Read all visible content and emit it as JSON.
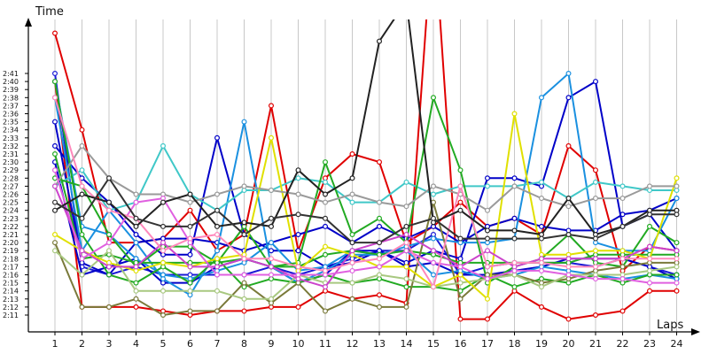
{
  "chart_data": {
    "type": "line",
    "xlabel": "Laps",
    "ylabel": "Time",
    "x_categories": [
      1,
      2,
      3,
      4,
      5,
      6,
      7,
      8,
      9,
      10,
      11,
      12,
      13,
      14,
      15,
      16,
      17,
      18,
      19,
      20,
      21,
      22,
      23,
      24
    ],
    "y_ticks": [
      "2:11",
      "2:12",
      "2:13",
      "2:14",
      "2:15",
      "2:16",
      "2:17",
      "2:18",
      "2:19",
      "2:20",
      "2:21",
      "2:22",
      "2:23",
      "2:24",
      "2:25",
      "2:26",
      "2:27",
      "2:28",
      "2:29",
      "2:30",
      "2:31",
      "2:32",
      "2:33",
      "2:34",
      "2:35",
      "2:36",
      "2:37",
      "2:38",
      "2:39",
      "2:40",
      "2:41"
    ],
    "y_unit": "seconds",
    "ylim_seconds": [
      130,
      162
    ],
    "grid_vertical": true,
    "grid_horizontal": false,
    "series": [
      {
        "color": "#e00000",
        "values": [
          160,
          132,
          132,
          132,
          131.5,
          131,
          131.5,
          131.5,
          132,
          132,
          134,
          133,
          133.5,
          132.5,
          180,
          130.5,
          130.5,
          134,
          132,
          130.5,
          131,
          131.5,
          134,
          134
        ]
      },
      {
        "color": "#e00000",
        "values": [
          166,
          154,
          140,
          140,
          140.5,
          144,
          139,
          141,
          157,
          139,
          148,
          151,
          150,
          140,
          142,
          145,
          142,
          143,
          141,
          152,
          149,
          136.5,
          139.5,
          139
        ]
      },
      {
        "color": "#1a1ad6",
        "values": [
          161,
          137,
          136,
          137,
          136,
          136,
          136,
          136,
          137,
          136,
          137,
          138,
          139,
          139,
          141,
          136,
          137,
          137.5,
          137.5,
          137.5,
          137,
          138,
          137,
          136
        ]
      },
      {
        "color": "#0000c8",
        "values": [
          150,
          136,
          137,
          138,
          135,
          135,
          137,
          138,
          137,
          135,
          136,
          139,
          139,
          137,
          137.5,
          136,
          136,
          136.5,
          137,
          138,
          138,
          138,
          137,
          135.5
        ]
      },
      {
        "color": "#0000c8",
        "values": [
          155,
          137.5,
          136,
          140,
          140.5,
          140.5,
          140,
          139,
          140,
          141,
          142,
          140,
          142,
          140.5,
          142,
          140,
          142,
          143,
          142,
          141.5,
          141.5,
          143.5,
          144,
          145.5
        ]
      },
      {
        "color": "#0000c8",
        "values": [
          152,
          148,
          145,
          141,
          138.5,
          138.5,
          153,
          141,
          139,
          139,
          137,
          137.5,
          139,
          137.5,
          139,
          138,
          148,
          148,
          147,
          158,
          160,
          142,
          143.5,
          139
        ]
      },
      {
        "color": "#1a90e0",
        "values": [
          158,
          139,
          144,
          140,
          135.5,
          133.5,
          139,
          155,
          137,
          135,
          136.5,
          138.5,
          138.5,
          139.5,
          140.5,
          140,
          140,
          140.5,
          158,
          161,
          140,
          139,
          139,
          145.5
        ]
      },
      {
        "color": "#1a90e0",
        "values": [
          160,
          142,
          141,
          138,
          136,
          135.5,
          136.5,
          137.5,
          140,
          136.5,
          137,
          139,
          138.5,
          139,
          136,
          136.5,
          135.5,
          136,
          137,
          136.5,
          136,
          135.5,
          136,
          135.5
        ]
      },
      {
        "color": "#40c8c8",
        "values": [
          147,
          149,
          144,
          145,
          152,
          146,
          144,
          146.5,
          146.5,
          148,
          147.5,
          145,
          145,
          147.5,
          146,
          147,
          147,
          147,
          147.5,
          145.5,
          147.5,
          147,
          146.5,
          146.5
        ]
      },
      {
        "color": "#22aa22",
        "values": [
          148,
          147,
          141,
          137,
          139.5,
          139.5,
          137.5,
          142,
          137,
          137.5,
          150,
          141,
          143,
          140,
          158,
          149,
          135,
          137,
          138,
          141,
          137.5,
          137,
          142,
          140
        ]
      },
      {
        "color": "#22aa22",
        "values": [
          160,
          141,
          136,
          135,
          137,
          135,
          138,
          134.5,
          135.5,
          135,
          136,
          135,
          135.5,
          134.5,
          134.5,
          134,
          136,
          134.5,
          135.5,
          135,
          136,
          135,
          136,
          136
        ]
      },
      {
        "color": "#22aa22",
        "values": [
          151,
          138,
          138.5,
          137.5,
          137.5,
          137.5,
          137.5,
          138,
          137,
          137,
          138.5,
          139,
          138.5,
          139,
          138.5,
          137.5,
          137.5,
          137.5,
          137.5,
          137.5,
          138.5,
          138.5,
          138.5,
          138.5
        ]
      },
      {
        "color": "#7a7a3a",
        "values": [
          140,
          132,
          132,
          133,
          131,
          131.5,
          131.5,
          135,
          132.5,
          135,
          131.5,
          133,
          132,
          132,
          145,
          133,
          136,
          136,
          135,
          135.5,
          136.5,
          137,
          137.5,
          137.5
        ]
      },
      {
        "color": "#a8c880",
        "values": [
          139,
          136,
          139,
          134,
          134,
          134,
          134,
          133,
          133,
          136,
          135,
          135,
          136,
          135.5,
          134.5,
          135,
          135.5,
          136,
          134.5,
          136,
          136,
          136,
          136.5,
          137
        ]
      },
      {
        "color": "#e0e000",
        "values": [
          141,
          139,
          137.5,
          136.5,
          137.5,
          137,
          138,
          138.5,
          153,
          136.5,
          139.5,
          138.5,
          137,
          137,
          134.5,
          136,
          133,
          156,
          138.5,
          138.5,
          139,
          139,
          138,
          148
        ]
      },
      {
        "color": "#9a9a9a",
        "values": [
          147,
          152,
          148,
          146,
          146,
          145,
          146,
          147,
          146.5,
          146,
          145,
          146,
          145,
          144.5,
          147,
          146,
          144,
          147,
          145.5,
          144.5,
          145.5,
          145.5,
          147,
          147
        ]
      },
      {
        "color": "#cc44cc",
        "values": [
          147,
          139,
          137,
          137,
          140,
          137,
          137,
          138,
          137,
          135.5,
          134.5,
          139,
          140,
          141,
          139,
          137,
          139,
          137,
          138,
          138,
          138,
          138,
          139.5,
          139
        ]
      },
      {
        "color": "#e060e0",
        "values": [
          149,
          138,
          140,
          145,
          145.5,
          140,
          136,
          136,
          136,
          136,
          136,
          136.5,
          137,
          139,
          137.5,
          137,
          135.5,
          136.5,
          136.5,
          136,
          135.5,
          135.5,
          135,
          135
        ]
      },
      {
        "color": "#ff88bb",
        "values": [
          158,
          147,
          144,
          143,
          139,
          140.5,
          141,
          138,
          138,
          137,
          136.5,
          137.5,
          138,
          140,
          134.5,
          147,
          137,
          137.5,
          137.5,
          137,
          137,
          138,
          138,
          138
        ]
      },
      {
        "color": "#222222",
        "values": [
          144,
          146,
          145,
          142,
          145,
          146,
          142,
          142.5,
          142,
          149,
          146,
          148,
          165,
          170,
          142.5,
          144,
          141.5,
          141.5,
          141,
          145.5,
          141,
          142,
          144,
          144
        ]
      },
      {
        "color": "#333333",
        "values": [
          145,
          143,
          148,
          143,
          142,
          142,
          144,
          141,
          143,
          143.5,
          143,
          140,
          140,
          142,
          143,
          140.5,
          140.5,
          140.5,
          140.5,
          141,
          140.5,
          142,
          143.5,
          143.5
        ]
      }
    ]
  }
}
